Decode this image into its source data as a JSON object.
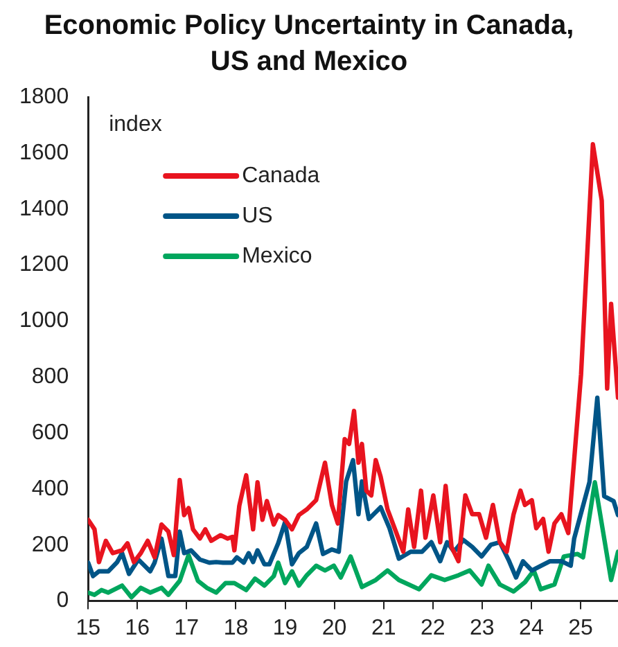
{
  "chart_data": {
    "type": "line",
    "title": "Economic Policy Uncertainty in Canada, US and Mexico",
    "ylabel": "index",
    "xlim": [
      15,
      25.76
    ],
    "xticks": [
      15,
      16,
      17,
      18,
      19,
      20,
      21,
      22,
      23,
      24,
      25
    ],
    "ylim": [
      0,
      1800
    ],
    "yticks": [
      0,
      200,
      400,
      600,
      800,
      1000,
      1200,
      1400,
      1600,
      1800
    ],
    "grid": false,
    "legend": "top left",
    "marker": "none",
    "line_style": "solid",
    "series": [
      {
        "name": "Canada",
        "color": "#e8141f",
        "x": [
          15.0,
          15.13,
          15.22,
          15.36,
          15.5,
          15.69,
          15.8,
          15.93,
          16.07,
          16.21,
          16.35,
          16.49,
          16.63,
          16.74,
          16.86,
          16.95,
          17.04,
          17.13,
          17.27,
          17.38,
          17.5,
          17.69,
          17.83,
          17.93,
          17.97,
          18.07,
          18.21,
          18.35,
          18.44,
          18.54,
          18.63,
          18.77,
          18.86,
          19.0,
          19.14,
          19.28,
          19.44,
          19.63,
          19.81,
          19.95,
          20.07,
          20.21,
          20.3,
          20.4,
          20.49,
          20.56,
          20.65,
          20.75,
          20.84,
          20.94,
          21.08,
          21.26,
          21.4,
          21.5,
          21.62,
          21.76,
          21.85,
          22.01,
          22.15,
          22.26,
          22.38,
          22.52,
          22.66,
          22.8,
          22.94,
          23.08,
          23.22,
          23.36,
          23.5,
          23.64,
          23.78,
          23.87,
          24.01,
          24.1,
          24.24,
          24.35,
          24.47,
          24.61,
          24.75,
          25.01,
          25.25,
          25.43,
          25.54,
          25.62,
          25.76
        ],
        "values": [
          290,
          256,
          139,
          215,
          171,
          181,
          206,
          139,
          171,
          215,
          156,
          273,
          248,
          164,
          432,
          307,
          332,
          256,
          223,
          256,
          215,
          235,
          223,
          229,
          181,
          340,
          449,
          256,
          424,
          290,
          357,
          273,
          307,
          290,
          256,
          307,
          327,
          360,
          494,
          343,
          277,
          578,
          561,
          679,
          494,
          561,
          394,
          377,
          503,
          444,
          327,
          243,
          176,
          327,
          193,
          394,
          226,
          377,
          210,
          411,
          193,
          142,
          377,
          310,
          310,
          226,
          343,
          210,
          176,
          310,
          394,
          343,
          360,
          260,
          293,
          176,
          277,
          310,
          243,
          810,
          1631,
          1430,
          759,
          1061,
          726
        ]
      },
      {
        "name": "US",
        "color": "#005587",
        "x": [
          15.0,
          15.1,
          15.22,
          15.41,
          15.59,
          15.69,
          15.83,
          16.02,
          16.26,
          16.35,
          16.49,
          16.63,
          16.77,
          16.86,
          16.95,
          17.09,
          17.27,
          17.46,
          17.6,
          17.74,
          17.93,
          18.02,
          18.16,
          18.26,
          18.35,
          18.44,
          18.58,
          18.68,
          18.86,
          19.0,
          19.14,
          19.28,
          19.44,
          19.63,
          19.77,
          19.95,
          20.09,
          20.24,
          20.38,
          20.49,
          20.56,
          20.7,
          20.94,
          21.12,
          21.31,
          21.55,
          21.78,
          21.97,
          22.15,
          22.29,
          22.43,
          22.62,
          22.8,
          22.99,
          23.18,
          23.36,
          23.55,
          23.69,
          23.83,
          24.01,
          24.2,
          24.38,
          24.61,
          24.8,
          24.87,
          25.18,
          25.34,
          25.48,
          25.67,
          25.76
        ],
        "values": [
          137,
          89,
          106,
          106,
          139,
          171,
          97,
          148,
          106,
          137,
          223,
          89,
          89,
          248,
          171,
          181,
          148,
          137,
          139,
          137,
          137,
          156,
          137,
          171,
          139,
          181,
          131,
          131,
          206,
          282,
          131,
          171,
          193,
          277,
          168,
          184,
          176,
          427,
          503,
          310,
          427,
          293,
          335,
          260,
          151,
          176,
          176,
          210,
          142,
          210,
          176,
          218,
          193,
          159,
          201,
          210,
          142,
          84,
          142,
          109,
          126,
          142,
          142,
          126,
          223,
          424,
          726,
          374,
          357,
          307
        ]
      },
      {
        "name": "Mexico",
        "color": "#00a65d",
        "x": [
          15.0,
          15.13,
          15.27,
          15.41,
          15.69,
          15.88,
          16.07,
          16.26,
          16.49,
          16.63,
          16.86,
          17.04,
          17.23,
          17.41,
          17.6,
          17.79,
          17.97,
          18.21,
          18.39,
          18.58,
          18.77,
          18.86,
          19.0,
          19.14,
          19.28,
          19.44,
          19.63,
          19.81,
          19.99,
          20.13,
          20.33,
          20.56,
          20.84,
          21.08,
          21.31,
          21.72,
          21.97,
          22.24,
          22.52,
          22.75,
          22.99,
          23.13,
          23.36,
          23.64,
          23.87,
          24.05,
          24.19,
          24.47,
          24.66,
          24.94,
          25.05,
          25.29,
          25.48,
          25.62,
          25.76
        ],
        "values": [
          30,
          22,
          39,
          30,
          55,
          13,
          47,
          30,
          47,
          22,
          72,
          164,
          72,
          47,
          30,
          64,
          64,
          39,
          80,
          55,
          89,
          137,
          64,
          106,
          55,
          92,
          126,
          109,
          126,
          84,
          159,
          50,
          75,
          109,
          75,
          42,
          92,
          75,
          92,
          109,
          59,
          126,
          59,
          34,
          67,
          109,
          42,
          59,
          159,
          168,
          156,
          424,
          223,
          75,
          176
        ]
      }
    ]
  }
}
